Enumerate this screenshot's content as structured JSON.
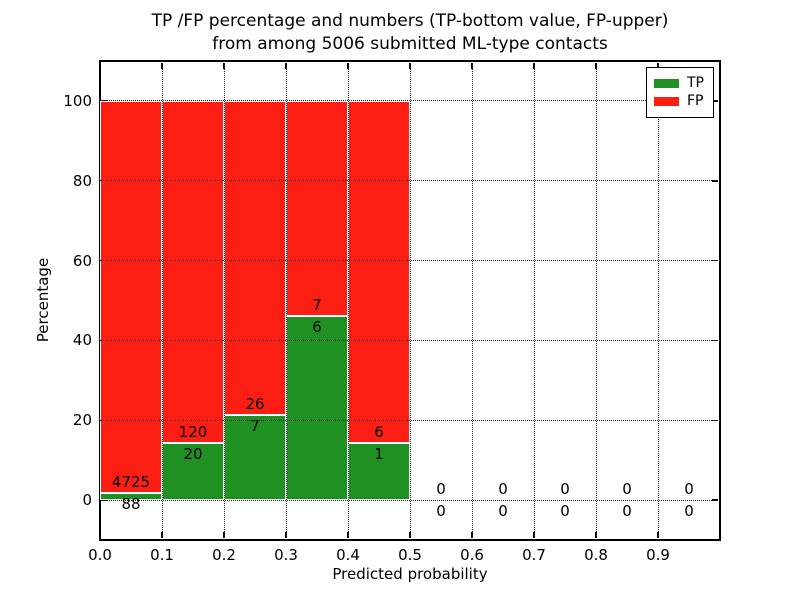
{
  "title": {
    "line1": "TP /FP percentage and numbers (TP-bottom value, FP-upper)",
    "line2": "from among 5006 submitted ML-type contacts"
  },
  "axes": {
    "xlabel": "Predicted probability",
    "ylabel": "Percentage"
  },
  "legend": {
    "position": "upper-right",
    "entries": [
      {
        "label": "TP",
        "color": "#1f9122"
      },
      {
        "label": "FP",
        "color": "#fc1d13"
      }
    ]
  },
  "chart_data": {
    "type": "bar",
    "stacked": true,
    "title": "TP /FP percentage and numbers (TP-bottom value, FP-upper) from among 5006 submitted ML-type contacts",
    "xlabel": "Predicted probability",
    "ylabel": "Percentage",
    "xlim": [
      0.0,
      1.0
    ],
    "ylim": [
      -10,
      110
    ],
    "xtick_values": [
      0.0,
      0.1,
      0.2,
      0.3,
      0.4,
      0.5,
      0.6,
      0.7,
      0.8,
      0.9
    ],
    "xtick_labels": [
      "0.0",
      "0.1",
      "0.2",
      "0.3",
      "0.4",
      "0.5",
      "0.6",
      "0.7",
      "0.8",
      "0.9"
    ],
    "ytick_values": [
      0,
      20,
      40,
      60,
      80,
      100
    ],
    "ytick_labels": [
      "0",
      "20",
      "40",
      "60",
      "80",
      "100"
    ],
    "grid": "dotted",
    "legend_position": "upper right",
    "total_contacts": 5006,
    "series": [
      {
        "name": "TP",
        "color": "#1f9122"
      },
      {
        "name": "FP",
        "color": "#fc1d13"
      }
    ],
    "bins": [
      {
        "range": [
          0.0,
          0.1
        ],
        "tp_count": 88,
        "fp_count": 4725,
        "tp_pct": 1.83,
        "fp_pct": 98.17
      },
      {
        "range": [
          0.1,
          0.2
        ],
        "tp_count": 20,
        "fp_count": 120,
        "tp_pct": 14.29,
        "fp_pct": 85.71
      },
      {
        "range": [
          0.2,
          0.3
        ],
        "tp_count": 7,
        "fp_count": 26,
        "tp_pct": 21.21,
        "fp_pct": 78.79
      },
      {
        "range": [
          0.3,
          0.4
        ],
        "tp_count": 6,
        "fp_count": 7,
        "tp_pct": 46.15,
        "fp_pct": 53.85
      },
      {
        "range": [
          0.4,
          0.5
        ],
        "tp_count": 1,
        "fp_count": 6,
        "tp_pct": 14.29,
        "fp_pct": 85.71
      },
      {
        "range": [
          0.5,
          0.6
        ],
        "tp_count": 0,
        "fp_count": 0,
        "tp_pct": 0,
        "fp_pct": 0
      },
      {
        "range": [
          0.6,
          0.7
        ],
        "tp_count": 0,
        "fp_count": 0,
        "tp_pct": 0,
        "fp_pct": 0
      },
      {
        "range": [
          0.7,
          0.8
        ],
        "tp_count": 0,
        "fp_count": 0,
        "tp_pct": 0,
        "fp_pct": 0
      },
      {
        "range": [
          0.8,
          0.9
        ],
        "tp_count": 0,
        "fp_count": 0,
        "tp_pct": 0,
        "fp_pct": 0
      },
      {
        "range": [
          0.9,
          1.0
        ],
        "tp_count": 0,
        "fp_count": 0,
        "tp_pct": 0,
        "fp_pct": 0
      }
    ]
  }
}
